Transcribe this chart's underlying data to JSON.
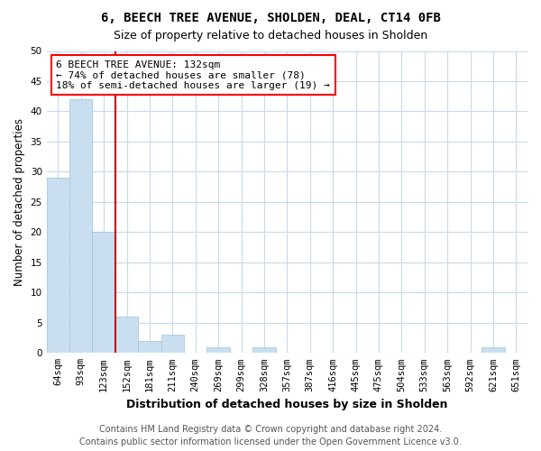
{
  "title": "6, BEECH TREE AVENUE, SHOLDEN, DEAL, CT14 0FB",
  "subtitle": "Size of property relative to detached houses in Sholden",
  "xlabel": "Distribution of detached houses by size in Sholden",
  "ylabel": "Number of detached properties",
  "categories": [
    "64sqm",
    "93sqm",
    "123sqm",
    "152sqm",
    "181sqm",
    "211sqm",
    "240sqm",
    "269sqm",
    "299sqm",
    "328sqm",
    "357sqm",
    "387sqm",
    "416sqm",
    "445sqm",
    "475sqm",
    "504sqm",
    "533sqm",
    "563sqm",
    "592sqm",
    "621sqm",
    "651sqm"
  ],
  "values": [
    29,
    42,
    20,
    6,
    2,
    3,
    0,
    1,
    0,
    1,
    0,
    0,
    0,
    0,
    0,
    0,
    0,
    0,
    0,
    1,
    0
  ],
  "bar_color": "#c9dff0",
  "bar_edge_color": "#a0c0df",
  "vline_x_index": 2,
  "vline_color": "#cc0000",
  "ylim": [
    0,
    50
  ],
  "yticks": [
    0,
    5,
    10,
    15,
    20,
    25,
    30,
    35,
    40,
    45,
    50
  ],
  "annotation_line1": "6 BEECH TREE AVENUE: 132sqm",
  "annotation_line2": "← 74% of detached houses are smaller (78)",
  "annotation_line3": "18% of semi-detached houses are larger (19) →",
  "footer_line1": "Contains HM Land Registry data © Crown copyright and database right 2024.",
  "footer_line2": "Contains public sector information licensed under the Open Government Licence v3.0.",
  "background_color": "#ffffff",
  "grid_color": "#c8daea",
  "title_fontsize": 10,
  "subtitle_fontsize": 9,
  "xlabel_fontsize": 9,
  "ylabel_fontsize": 8.5,
  "tick_fontsize": 7.5,
  "annotation_fontsize": 8,
  "footer_fontsize": 7
}
